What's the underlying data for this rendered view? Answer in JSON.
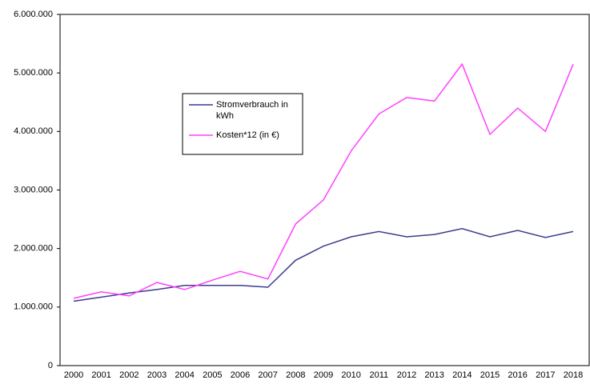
{
  "chart_data": {
    "type": "line",
    "categories": [
      "2000",
      "2001",
      "2002",
      "2003",
      "2004",
      "2005",
      "2006",
      "2007",
      "2008",
      "2009",
      "2010",
      "2011",
      "2012",
      "2013",
      "2014",
      "2015",
      "2016",
      "2017",
      "2018"
    ],
    "series": [
      {
        "name": "Stromverbrauch in kWh",
        "color": "#3c3c8e",
        "values": [
          1100000,
          1170000,
          1240000,
          1300000,
          1370000,
          1370000,
          1370000,
          1340000,
          1800000,
          2040000,
          2200000,
          2290000,
          2200000,
          2240000,
          2340000,
          2200000,
          2310000,
          2190000,
          2290000
        ]
      },
      {
        "name": "Kosten*12 (in €)",
        "color": "#ff40ff",
        "values": [
          1150000,
          1260000,
          1190000,
          1420000,
          1300000,
          1460000,
          1610000,
          1480000,
          2420000,
          2830000,
          3670000,
          4300000,
          4580000,
          4520000,
          5150000,
          3950000,
          4400000,
          4000000,
          5150000
        ]
      }
    ],
    "ylim": [
      0,
      6000000
    ],
    "yticks": [
      0,
      {
        "value": 1000000,
        "label": "1.000.000"
      },
      {
        "value": 2000000,
        "label": "2.000.000"
      },
      {
        "value": 3000000,
        "label": "3.000.000"
      },
      {
        "value": 4000000,
        "label": "4.000.000"
      },
      {
        "value": 5000000,
        "label": "5.000.000"
      },
      {
        "value": 6000000,
        "label": "6.000.000"
      }
    ],
    "grid": false,
    "legend": "upper left"
  }
}
